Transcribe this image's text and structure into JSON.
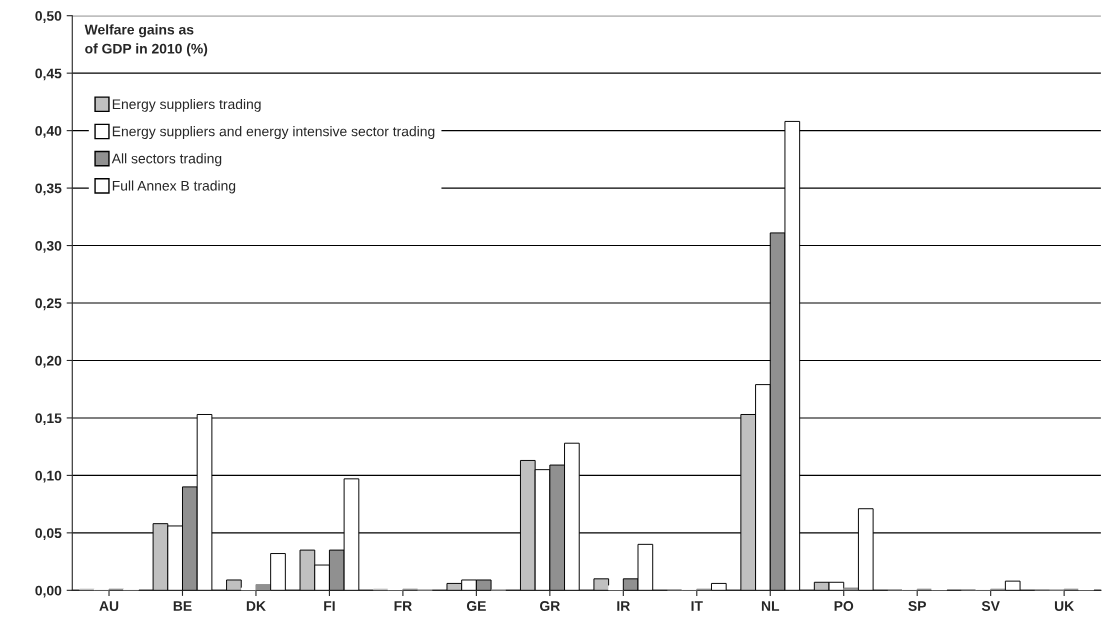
{
  "chart_data": {
    "type": "bar",
    "annotations": [
      "Welfare gains as\nof GDP in 2010 (%)"
    ],
    "categories": [
      "AU",
      "BE",
      "DK",
      "FI",
      "FR",
      "GE",
      "GR",
      "IR",
      "IT",
      "NL",
      "PO",
      "SP",
      "SV",
      "UK"
    ],
    "series": [
      {
        "name": "Energy suppliers trading",
        "color": "#c0c0c0",
        "values": [
          0.001,
          0.058,
          0.009,
          0.035,
          0.001,
          0.006,
          0.113,
          0.01,
          0.0,
          0.153,
          0.007,
          0.0,
          0.0,
          0.0
        ]
      },
      {
        "name": "Energy suppliers and energy intensive sector trading",
        "color": "#ffffff",
        "values": [
          0.001,
          0.056,
          0.002,
          0.022,
          0.004,
          0.009,
          0.105,
          0.004,
          0.001,
          0.179,
          0.007,
          0.001,
          0.001,
          0.0
        ]
      },
      {
        "name": "All sectors trading",
        "color": "#909090",
        "values": [
          0.001,
          0.09,
          0.005,
          0.035,
          0.001,
          0.009,
          0.109,
          0.01,
          0.001,
          0.311,
          0.002,
          0.001,
          0.001,
          0.001
        ]
      },
      {
        "name": "Full Annex B trading",
        "color": "#ffffff",
        "values": [
          0.001,
          0.153,
          0.032,
          0.097,
          0.0,
          0.0,
          0.128,
          0.04,
          0.006,
          0.408,
          0.071,
          0.004,
          0.008,
          0.004
        ]
      }
    ],
    "ylim": [
      0,
      0.5
    ],
    "yticks": [
      {
        "value": 0,
        "label": "0,00"
      },
      {
        "value": 0.05,
        "label": "0,05"
      },
      {
        "value": 0.1,
        "label": "0,10"
      },
      {
        "value": 0.15,
        "label": "0,15"
      },
      {
        "value": 0.2,
        "label": "0,20"
      },
      {
        "value": 0.25,
        "label": "0,25"
      },
      {
        "value": 0.3,
        "label": "0,30"
      },
      {
        "value": 0.35,
        "label": "0,35"
      },
      {
        "value": 0.4,
        "label": "0,40"
      },
      {
        "value": 0.45,
        "label": "0,45"
      },
      {
        "value": 0.5,
        "label": "0,50"
      }
    ],
    "grid": "y",
    "legend": "top left"
  }
}
